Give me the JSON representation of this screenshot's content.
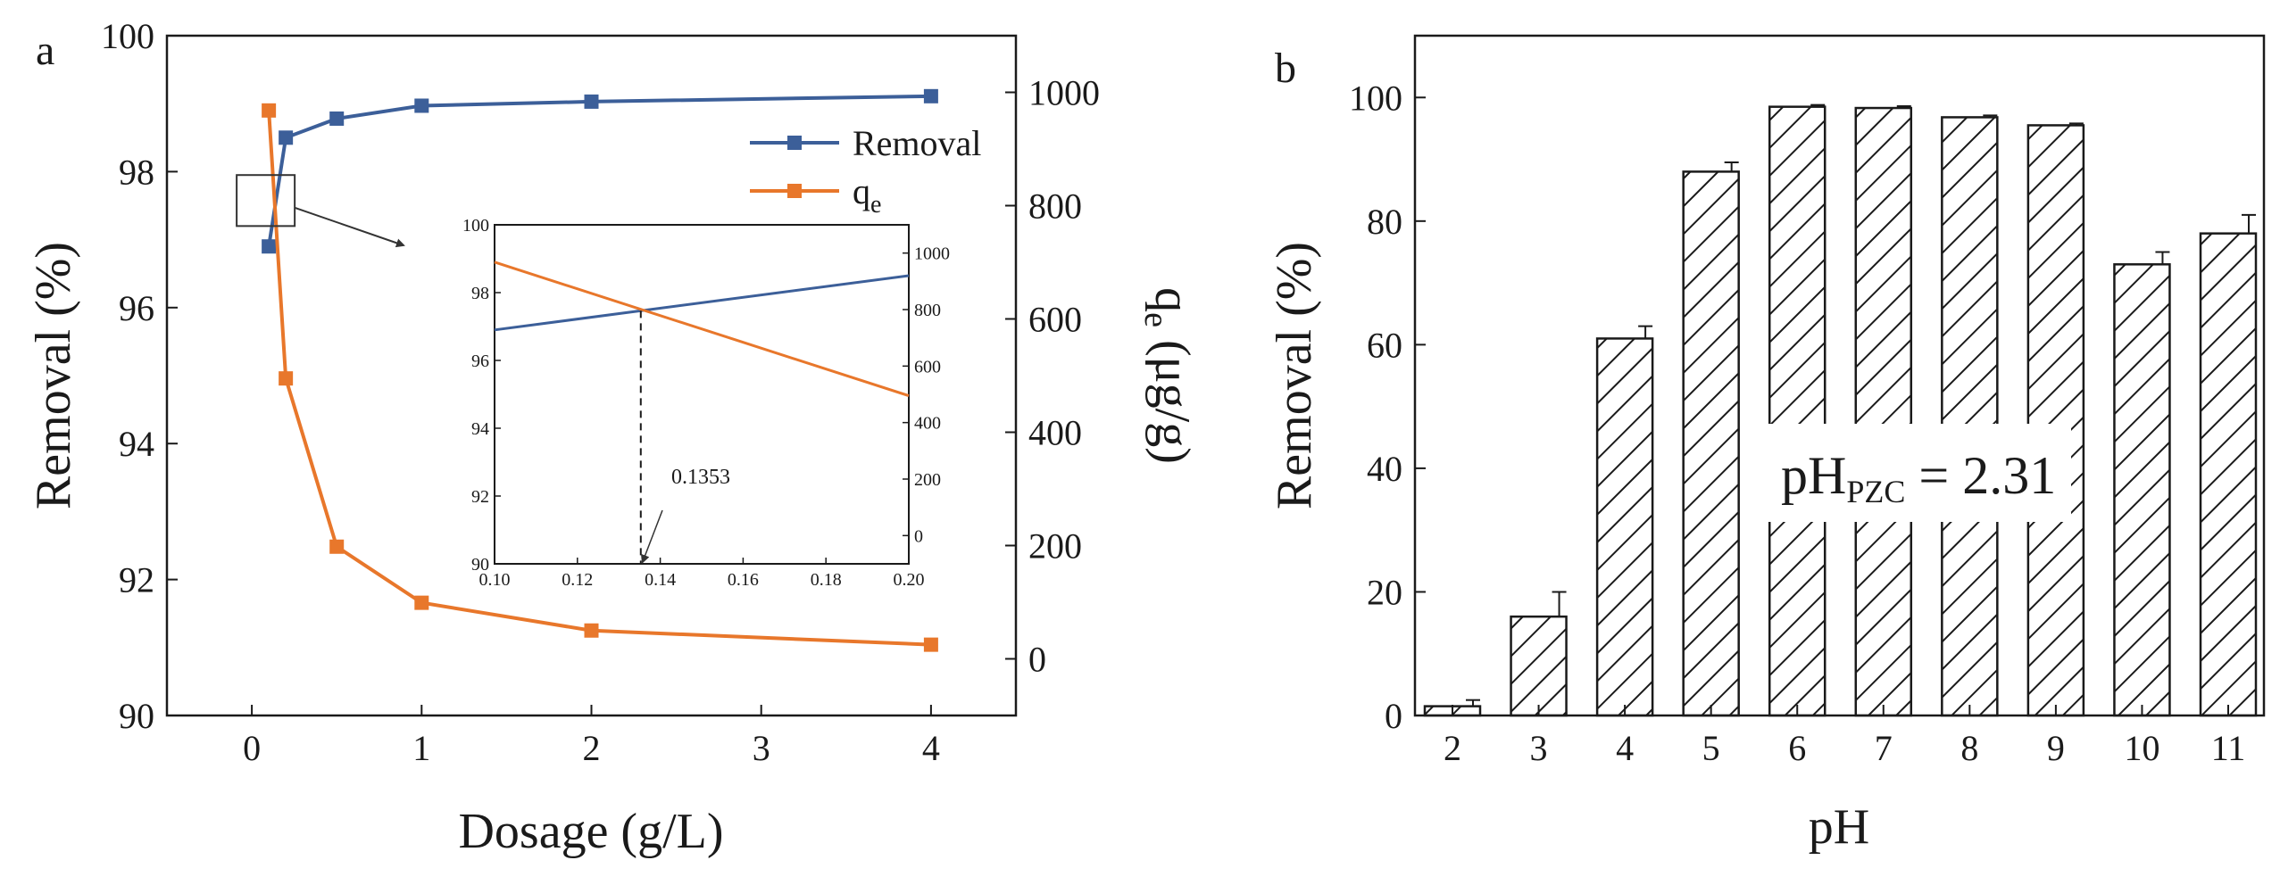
{
  "chart_data": [
    {
      "panel_label": "a",
      "type": "line",
      "xlabel": "Dosage (g/L)",
      "ylabel": "Removal (%)",
      "y2label": "q",
      "y2label_sub": "e",
      "y2label_unit": " (μg/g)",
      "xlim": [
        -0.5,
        4.5
      ],
      "xtick_positions": [
        0,
        1,
        2,
        3,
        4
      ],
      "xtick_labels": [
        "0",
        "1",
        "2",
        "3",
        "4"
      ],
      "ylim": [
        90,
        100
      ],
      "ytick_values": [
        90,
        92,
        94,
        96,
        98,
        100
      ],
      "ytick_labels": [
        "90",
        "92",
        "94",
        "96",
        "98",
        "100"
      ],
      "y2lim": [
        -100,
        1100
      ],
      "y2tick_values": [
        0,
        200,
        400,
        600,
        800,
        1000
      ],
      "y2tick_labels": [
        "0",
        "200",
        "400",
        "600",
        "800",
        "1000"
      ],
      "x_display_positions": [
        0.1,
        0.2,
        0.5,
        1,
        2,
        4
      ],
      "series": [
        {
          "name": "Removal",
          "axis": "left",
          "color": "#3c5f99",
          "marker": "square",
          "values": [
            96.9,
            98.5,
            98.78,
            98.97,
            99.03,
            99.11
          ]
        },
        {
          "name": "q",
          "name_sub": "e",
          "axis": "right",
          "color": "#e8772b",
          "marker": "square",
          "values": [
            968,
            495,
            198,
            99,
            50,
            25
          ]
        }
      ],
      "legend": [
        {
          "label": "Removal",
          "sub": "",
          "color": "#3c5f99"
        },
        {
          "label": "q",
          "sub": "e",
          "color": "#e8772b"
        }
      ],
      "zoom_box": {
        "x": [
          0.1,
          0.2
        ],
        "y": [
          97.2,
          97.95
        ]
      },
      "inset": {
        "xlim": [
          0.1,
          0.2
        ],
        "xtick_values": [
          0.1,
          0.12,
          0.14,
          0.16,
          0.18,
          0.2
        ],
        "xtick_labels": [
          "0.10",
          "0.12",
          "0.14",
          "0.16",
          "0.18",
          "0.20"
        ],
        "ylim": [
          90,
          100
        ],
        "ytick_values": [
          90,
          92,
          94,
          96,
          98,
          100
        ],
        "ytick_labels": [
          "90",
          "92",
          "94",
          "96",
          "98",
          "100"
        ],
        "y2lim": [
          -100,
          1100
        ],
        "y2tick_values": [
          0,
          200,
          400,
          600,
          800,
          1000
        ],
        "y2tick_labels": [
          "0",
          "200",
          "400",
          "600",
          "800",
          "1000"
        ],
        "removal_line": {
          "x": [
            0.1,
            0.2
          ],
          "y": [
            96.9,
            98.5
          ]
        },
        "qe_line": {
          "x": [
            0.1,
            0.2
          ],
          "y": [
            968,
            495
          ]
        },
        "intersection_x": 0.1353,
        "intersection_y": 97.465,
        "annotation": "0.1353"
      }
    },
    {
      "panel_label": "b",
      "type": "bar",
      "xlabel": "pH",
      "ylabel": "Removal (%)",
      "categories": [
        "2",
        "3",
        "4",
        "5",
        "6",
        "7",
        "8",
        "9",
        "10",
        "11"
      ],
      "values": [
        1.5,
        16,
        61,
        88,
        98.5,
        98.3,
        96.8,
        95.5,
        73,
        78
      ],
      "errors": [
        1,
        4,
        2,
        1.5,
        0.3,
        0.3,
        0.3,
        0.3,
        2,
        3
      ],
      "ylim": [
        0,
        110
      ],
      "ytick_values": [
        0,
        20,
        40,
        60,
        80,
        100
      ],
      "ytick_labels": [
        "0",
        "20",
        "40",
        "60",
        "80",
        "100"
      ],
      "bar_pattern": "diagonal-hatch",
      "annotation": {
        "prefix": "pH",
        "sub": "PZC",
        "suffix": " = 2.31"
      }
    }
  ]
}
